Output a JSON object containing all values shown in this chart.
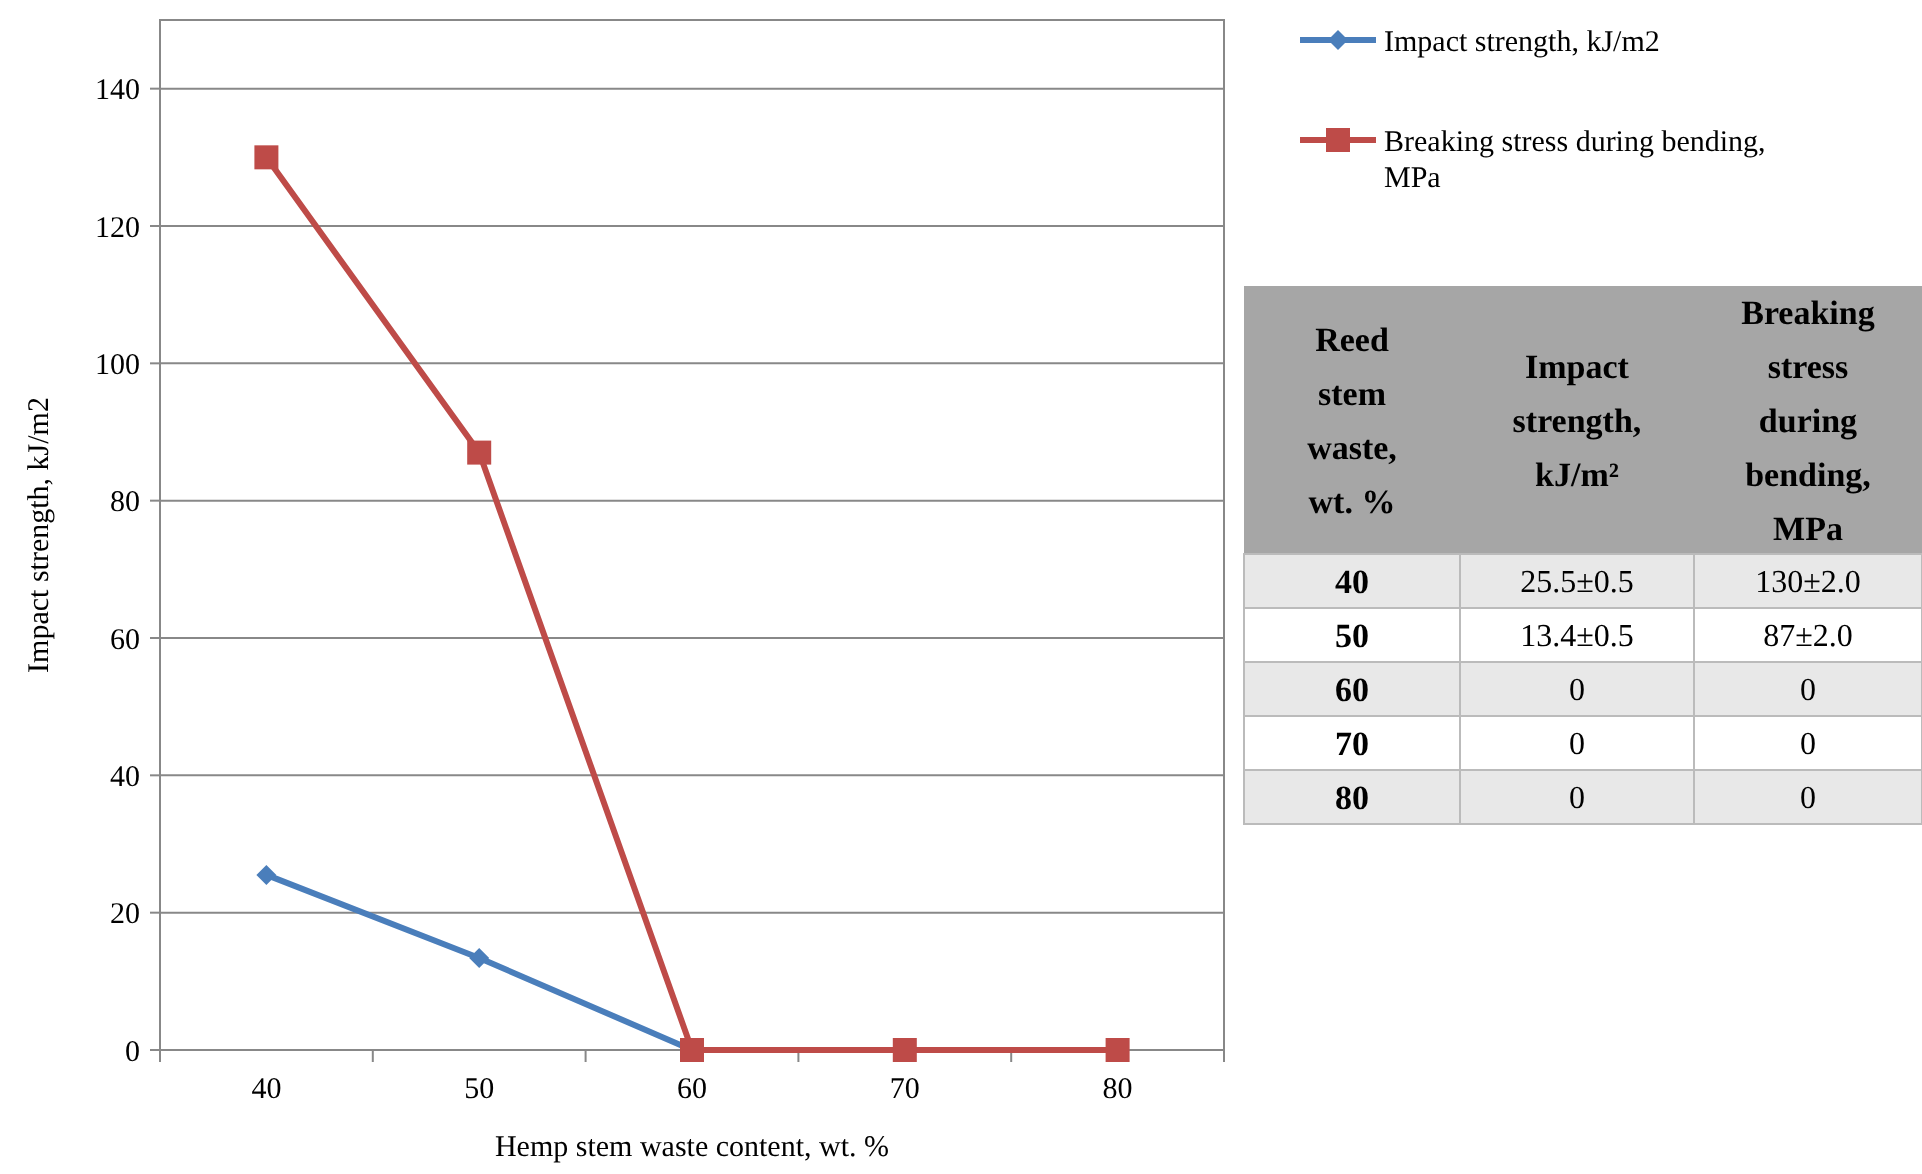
{
  "chart_data": {
    "type": "line",
    "xlabel": "Hemp stem waste content, wt. %",
    "ylabel": "Impact strength, kJ/m2",
    "categories": [
      "40",
      "50",
      "60",
      "70",
      "80"
    ],
    "series": [
      {
        "name": "Impact strength, kJ/m2",
        "color": "#4a7ebb",
        "marker": "diamond",
        "values": [
          25.5,
          13.4,
          0,
          0,
          0
        ]
      },
      {
        "name": "Breaking stress during bending, MPa",
        "color": "#be4b48",
        "marker": "square",
        "values": [
          130,
          87,
          0,
          0,
          0
        ]
      }
    ],
    "annotations": [
      "Reed stem waste, wt. %",
      "Impact strength, kJ/m²",
      "Breaking stress during bending, MPa",
      "25.5±0.5",
      "130±2.0",
      "13.4±0.5",
      "87±2.0",
      "0",
      "0",
      "0",
      "0",
      "0",
      "0"
    ],
    "ylim": [
      0,
      150
    ],
    "yticks": [
      0,
      20,
      40,
      60,
      80,
      100,
      120,
      140
    ],
    "grid": "y",
    "legend": "top right",
    "line_style": "solid"
  }
}
